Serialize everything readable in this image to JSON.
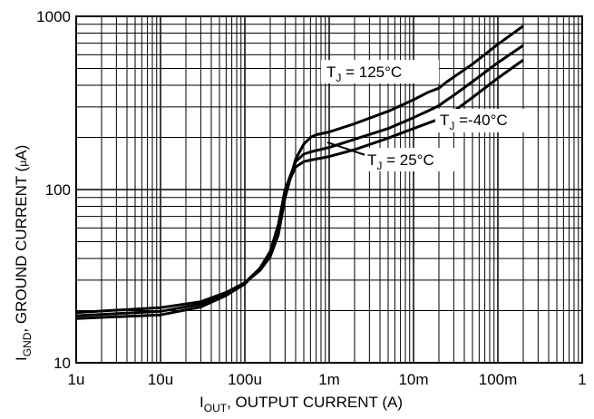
{
  "chart_data": {
    "type": "line",
    "xlabel_main": "I",
    "xlabel_sub": "OUT",
    "xlabel_rest": ", OUTPUT CURRENT (A)",
    "ylabel_main": "I",
    "ylabel_sub": "GND",
    "ylabel_rest": ", GROUND CURRENT (",
    "ylabel_mu": "μ",
    "ylabel_end": "A)",
    "x_scale": "log",
    "y_scale": "log",
    "xlim": [
      1e-06,
      1
    ],
    "ylim": [
      10,
      1000
    ],
    "x_ticks": [
      {
        "value": 1e-06,
        "label": "1u"
      },
      {
        "value": 1e-05,
        "label": "10u"
      },
      {
        "value": 0.0001,
        "label": "100u"
      },
      {
        "value": 0.001,
        "label": "1m"
      },
      {
        "value": 0.01,
        "label": "10m"
      },
      {
        "value": 0.1,
        "label": "100m"
      },
      {
        "value": 1,
        "label": "1"
      }
    ],
    "y_ticks": [
      {
        "value": 10,
        "label": "10"
      },
      {
        "value": 100,
        "label": "100"
      },
      {
        "value": 1000,
        "label": "1000"
      }
    ],
    "grid": true,
    "series": [
      {
        "name": "T_J = 125°C",
        "points": [
          [
            1e-06,
            19.5
          ],
          [
            1e-05,
            20.8
          ],
          [
            3e-05,
            22.5
          ],
          [
            6e-05,
            25.5
          ],
          [
            0.0001,
            29
          ],
          [
            0.00015,
            34
          ],
          [
            0.0002,
            41
          ],
          [
            0.00025,
            55
          ],
          [
            0.0003,
            90
          ],
          [
            0.0004,
            150
          ],
          [
            0.0005,
            183
          ],
          [
            0.0006,
            200
          ],
          [
            0.0007,
            207
          ],
          [
            0.001,
            215
          ],
          [
            0.002,
            240
          ],
          [
            0.005,
            283
          ],
          [
            0.01,
            330
          ],
          [
            0.015,
            365
          ],
          [
            0.02,
            385
          ],
          [
            0.025,
            420
          ],
          [
            0.05,
            530
          ],
          [
            0.1,
            690
          ],
          [
            0.2,
            880
          ]
        ]
      },
      {
        "name": "T_J = 25°C",
        "points": [
          [
            1e-06,
            18.7
          ],
          [
            1e-05,
            19.8
          ],
          [
            3e-05,
            21.8
          ],
          [
            6e-05,
            25
          ],
          [
            0.0001,
            29
          ],
          [
            0.00015,
            35
          ],
          [
            0.0002,
            43
          ],
          [
            0.00025,
            62
          ],
          [
            0.0003,
            100
          ],
          [
            0.0004,
            145
          ],
          [
            0.0005,
            160
          ],
          [
            0.0006,
            165
          ],
          [
            0.0007,
            168
          ],
          [
            0.001,
            175
          ],
          [
            0.002,
            195
          ],
          [
            0.005,
            225
          ],
          [
            0.01,
            260
          ],
          [
            0.015,
            285
          ],
          [
            0.02,
            305
          ],
          [
            0.025,
            330
          ],
          [
            0.03,
            350
          ],
          [
            0.05,
            420
          ],
          [
            0.1,
            540
          ],
          [
            0.2,
            680
          ]
        ]
      },
      {
        "name": "T_J = -40°C",
        "points": [
          [
            1e-06,
            18
          ],
          [
            1e-05,
            18.9
          ],
          [
            3e-05,
            21
          ],
          [
            6e-05,
            24.5
          ],
          [
            0.0001,
            28.5
          ],
          [
            0.00015,
            35
          ],
          [
            0.0002,
            44
          ],
          [
            0.00025,
            63
          ],
          [
            0.0003,
            100
          ],
          [
            0.0004,
            135
          ],
          [
            0.0005,
            145
          ],
          [
            0.0006,
            148
          ],
          [
            0.0007,
            150
          ],
          [
            0.001,
            155
          ],
          [
            0.002,
            170
          ],
          [
            0.005,
            198
          ],
          [
            0.01,
            225
          ],
          [
            0.02,
            255
          ],
          [
            0.03,
            283
          ],
          [
            0.05,
            340
          ],
          [
            0.1,
            440
          ],
          [
            0.2,
            560
          ]
        ]
      }
    ],
    "annotations": [
      {
        "main": "T",
        "sub": "J",
        "rest": " = 125°C"
      },
      {
        "main": "T",
        "sub": "J",
        "rest": " =-40°C"
      },
      {
        "main": "T",
        "sub": "J",
        "rest": " = 25°C"
      }
    ]
  }
}
